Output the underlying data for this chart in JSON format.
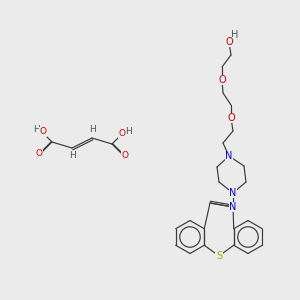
{
  "bg_color": "#ebebeb",
  "fig_size": [
    3.0,
    3.0
  ],
  "dpi": 100,
  "atom_colors": {
    "C": "#3a5a5a",
    "H": "#3a5a5a",
    "O": "#cc0000",
    "N": "#0000cc",
    "S": "#aaaa00",
    "bond": "#3a3a3a"
  },
  "lw": 0.85
}
